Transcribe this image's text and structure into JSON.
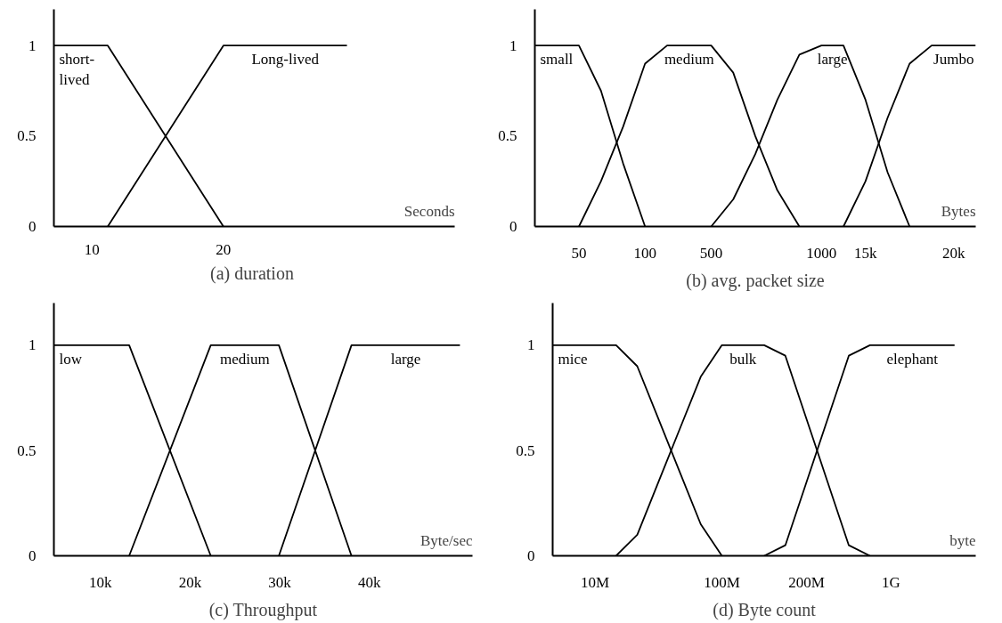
{
  "chart_data": [
    {
      "type": "line",
      "title": "(a)  duration",
      "xlabel": "Seconds",
      "xlim": [
        7.1,
        37.6
      ],
      "ylim": [
        0,
        1.2
      ],
      "xticks": [
        10,
        20
      ],
      "yticks": [
        0,
        0.5,
        1
      ],
      "series": [
        {
          "name": "short-lived",
          "color": "#000000",
          "x": [
            7.1,
            11.2,
            20
          ],
          "values": [
            1,
            1,
            0
          ]
        },
        {
          "name": "Long-lived",
          "color": "#000000",
          "x": [
            11.2,
            20,
            29.4
          ],
          "values": [
            0,
            1,
            1
          ]
        }
      ]
    },
    {
      "type": "line",
      "title": "(b) avg. packet size",
      "xlabel": "Bytes",
      "ylim": [
        0,
        1.2
      ],
      "yticks": [
        0,
        0.5,
        1
      ],
      "categories": [
        null,
        null,
        "50",
        null,
        null,
        "100",
        null,
        null,
        "500",
        null,
        null,
        null,
        null,
        "1000",
        null,
        "15k",
        null,
        null,
        null,
        "20k",
        null
      ],
      "series": [
        {
          "name": "small",
          "color": "#000000",
          "values": [
            1,
            1,
            1,
            0.75,
            0.35,
            0,
            null,
            null,
            null,
            null,
            null,
            null,
            null,
            null,
            null,
            null,
            null,
            null,
            null,
            null,
            null
          ]
        },
        {
          "name": "medium",
          "color": "#000000",
          "values": [
            null,
            null,
            0,
            0.25,
            0.55,
            0.9,
            1,
            1,
            1,
            0.85,
            0.5,
            0.2,
            0,
            null,
            null,
            null,
            null,
            null,
            null,
            null,
            null
          ]
        },
        {
          "name": "large",
          "color": "#000000",
          "values": [
            null,
            null,
            null,
            null,
            null,
            null,
            null,
            null,
            0,
            0.15,
            0.4,
            0.7,
            0.95,
            1,
            1,
            0.7,
            0.3,
            0,
            null,
            null,
            null
          ]
        },
        {
          "name": "Jumbo",
          "color": "#000000",
          "values": [
            null,
            null,
            null,
            null,
            null,
            null,
            null,
            null,
            null,
            null,
            null,
            null,
            null,
            null,
            0,
            0.25,
            0.6,
            0.9,
            1,
            1,
            1
          ]
        }
      ]
    },
    {
      "type": "line",
      "title": "(c) Throughput",
      "xlabel": "Byte/sec",
      "xlim": [
        4800,
        51500
      ],
      "ylim": [
        0,
        1.2
      ],
      "xticks": [
        {
          "value": 10000,
          "label": "10k"
        },
        {
          "value": 20000,
          "label": "20k"
        },
        {
          "value": 30000,
          "label": "30k"
        },
        {
          "value": 40000,
          "label": "40k"
        }
      ],
      "yticks": [
        0,
        0.5,
        1
      ],
      "series": [
        {
          "name": "low",
          "color": "#000000",
          "x": [
            4800,
            13200,
            22300
          ],
          "values": [
            1,
            1,
            0
          ]
        },
        {
          "name": "medium",
          "color": "#000000",
          "x": [
            13200,
            22300,
            29900,
            38000
          ],
          "values": [
            0,
            1,
            1,
            0
          ]
        },
        {
          "name": "large",
          "color": "#000000",
          "x": [
            29900,
            38000,
            50100
          ],
          "values": [
            0,
            1,
            1
          ]
        }
      ]
    },
    {
      "type": "line",
      "title": "(d) Byte count",
      "xlabel": "byte",
      "ylim": [
        0,
        1.2
      ],
      "yticks": [
        0,
        0.5,
        1
      ],
      "categories": [
        null,
        null,
        "10M",
        null,
        null,
        null,
        null,
        null,
        "100M",
        null,
        null,
        null,
        "200M",
        null,
        null,
        null,
        "1G",
        null,
        null,
        null,
        null
      ],
      "series": [
        {
          "name": "mice",
          "color": "#000000",
          "values": [
            1,
            1,
            1,
            1,
            0.9,
            0.65,
            0.4,
            0.15,
            0,
            null,
            null,
            null,
            null,
            null,
            null,
            null,
            null,
            null,
            null,
            null,
            null
          ]
        },
        {
          "name": "bulk",
          "color": "#000000",
          "values": [
            null,
            null,
            null,
            0,
            0.1,
            0.35,
            0.6,
            0.85,
            1,
            1,
            1,
            0.95,
            0.65,
            0.35,
            0.05,
            0,
            null,
            null,
            null,
            null,
            null
          ]
        },
        {
          "name": "elephant",
          "color": "#000000",
          "values": [
            null,
            null,
            null,
            null,
            null,
            null,
            null,
            null,
            null,
            null,
            0,
            0.05,
            0.35,
            0.65,
            0.95,
            1,
            1,
            1,
            1,
            1,
            null
          ]
        }
      ]
    }
  ]
}
